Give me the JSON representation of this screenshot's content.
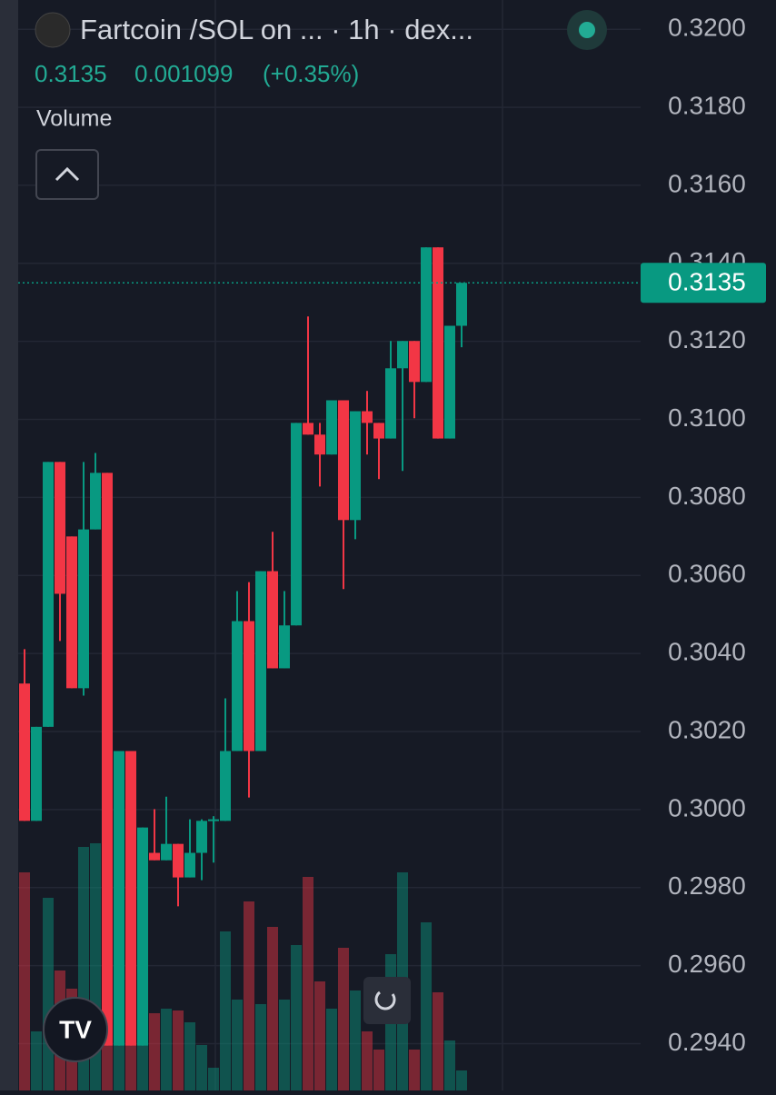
{
  "chart_data": {
    "type": "candlestick",
    "title": "Fartcoin /SOL on ...  · 1h · dex...",
    "change": 0.001099,
    "change_label": "(+0.35%)",
    "volume_label": "Volume",
    "up_color": "#089981",
    "down_color": "#f23645",
    "ylim": [
      0.2928,
      0.32075
    ],
    "yticks": [
      {
        "value": 0.32,
        "label": "0.3200"
      },
      {
        "value": 0.318,
        "label": "0.3180"
      },
      {
        "value": 0.316,
        "label": "0.3160"
      },
      {
        "value": 0.314,
        "label": "0.3140"
      },
      {
        "value": 0.312,
        "label": "0.3120"
      },
      {
        "value": 0.31,
        "label": "0.3100"
      },
      {
        "value": 0.308,
        "label": "0.3080"
      },
      {
        "value": 0.306,
        "label": "0.3060"
      },
      {
        "value": 0.304,
        "label": "0.3040"
      },
      {
        "value": 0.302,
        "label": "0.3020"
      },
      {
        "value": 0.3,
        "label": "0.3000"
      },
      {
        "value": 0.298,
        "label": "0.2980"
      },
      {
        "value": 0.296,
        "label": "0.2960"
      },
      {
        "value": 0.294,
        "label": "0.2940"
      }
    ],
    "grid": true,
    "open": [
      0.30323,
      0.29971,
      0.30212,
      0.30891,
      0.307,
      0.30311,
      0.30718,
      0.30863,
      0.29395,
      0.3015,
      0.29395,
      0.29889,
      0.2987,
      0.29912,
      0.29826,
      0.29889,
      0.29971,
      0.29971,
      0.3015,
      0.30483,
      0.3015,
      0.30611,
      0.30362,
      0.30472,
      0.30991,
      0.30961,
      0.3091,
      0.31049,
      0.30742,
      0.31021,
      0.30991,
      0.30951,
      0.31131,
      0.31201,
      0.31096,
      0.31441,
      0.30951,
      0.3124
    ],
    "high": [
      0.30411,
      0.30212,
      0.30891,
      0.30891,
      0.307,
      0.30891,
      0.30914,
      0.30863,
      0.3015,
      0.3015,
      0.29954,
      0.30001,
      0.30033,
      0.29912,
      0.29975,
      0.29975,
      0.29983,
      0.30285,
      0.3056,
      0.30583,
      0.30611,
      0.30712,
      0.3056,
      0.30991,
      0.31264,
      0.30991,
      0.31049,
      0.31049,
      0.31021,
      0.31073,
      0.30991,
      0.31201,
      0.31201,
      0.31201,
      0.31441,
      0.31441,
      0.3124,
      0.3135
    ],
    "low": [
      0.29971,
      0.29971,
      0.30212,
      0.30432,
      0.30311,
      0.30292,
      0.30718,
      0.29395,
      0.29395,
      0.29395,
      0.29395,
      0.2987,
      0.2987,
      0.29752,
      0.29826,
      0.29819,
      0.29864,
      0.29971,
      0.3015,
      0.30031,
      0.3015,
      0.30362,
      0.30362,
      0.30472,
      0.30961,
      0.30828,
      0.3091,
      0.30565,
      0.30693,
      0.3091,
      0.30847,
      0.30951,
      0.30868,
      0.31003,
      0.31096,
      0.30951,
      0.30951,
      0.31185
    ],
    "close": [
      0.29971,
      0.30212,
      0.30891,
      0.30553,
      0.30311,
      0.30718,
      0.30863,
      0.29395,
      0.3015,
      0.29395,
      0.29954,
      0.2987,
      0.29912,
      0.29826,
      0.29889,
      0.29971,
      0.29975,
      0.3015,
      0.30483,
      0.3015,
      0.30611,
      0.30362,
      0.30472,
      0.30991,
      0.30961,
      0.3091,
      0.31049,
      0.30742,
      0.31021,
      0.30991,
      0.30951,
      0.31131,
      0.31201,
      0.31096,
      0.31441,
      0.30951,
      0.3124,
      0.3135
    ],
    "volume": [
      240,
      65,
      212,
      132,
      112,
      268,
      272,
      275,
      275,
      50,
      60,
      85,
      90,
      88,
      75,
      50,
      25,
      175,
      100,
      208,
      95,
      180,
      100,
      160,
      235,
      120,
      90,
      157,
      110,
      65,
      45,
      150,
      240,
      45,
      185,
      108,
      55,
      22
    ]
  }
}
